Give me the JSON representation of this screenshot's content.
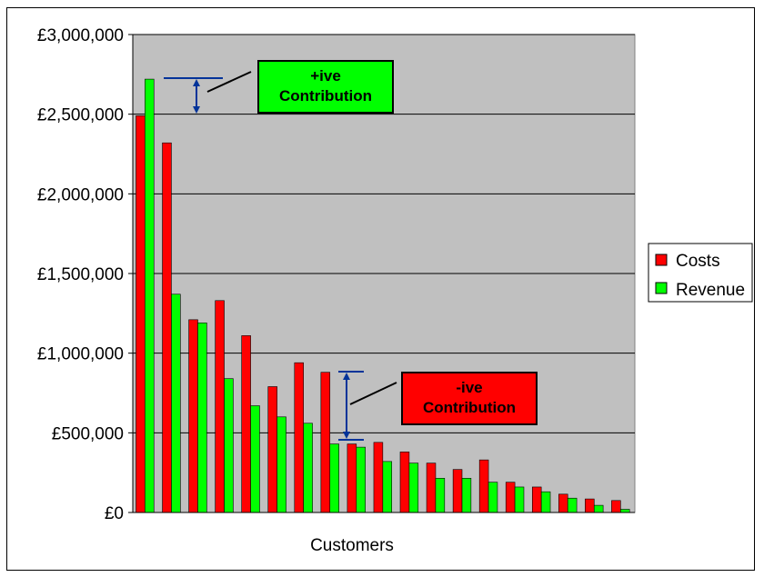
{
  "chart_data": {
    "type": "bar",
    "title": "",
    "xlabel": "Customers",
    "ylabel": "",
    "ylim": [
      0,
      3000000
    ],
    "ytick_values": [
      0,
      500000,
      1000000,
      1500000,
      2000000,
      2500000,
      3000000
    ],
    "ytick_labels": [
      "£0",
      "£500,000",
      "£1,000,000",
      "£1,500,000",
      "£2,000,000",
      "£2,500,000",
      "£3,000,000"
    ],
    "grid": true,
    "legend_position": "right",
    "series": [
      {
        "name": "Costs",
        "color": "#ff0000",
        "values": [
          2490000,
          2320000,
          1210000,
          1330000,
          1110000,
          790000,
          940000,
          880000,
          430000,
          440000,
          380000,
          310000,
          270000,
          330000,
          190000,
          160000,
          115000,
          85000,
          75000
        ]
      },
      {
        "name": "Revenue",
        "color": "#00ff00",
        "values": [
          2720000,
          1370000,
          1190000,
          840000,
          670000,
          600000,
          560000,
          430000,
          410000,
          320000,
          310000,
          215000,
          215000,
          190000,
          160000,
          130000,
          90000,
          45000,
          20000
        ]
      }
    ],
    "plot_background": "#c0c0c0",
    "annotations": [
      {
        "text_line1": "+ive",
        "text_line2": "Contribution",
        "fill": "#00ff00"
      },
      {
        "text_line1": "-ive",
        "text_line2": "Contribution",
        "fill": "#ff0000"
      }
    ],
    "annotation_arrow_color": "#003399"
  }
}
